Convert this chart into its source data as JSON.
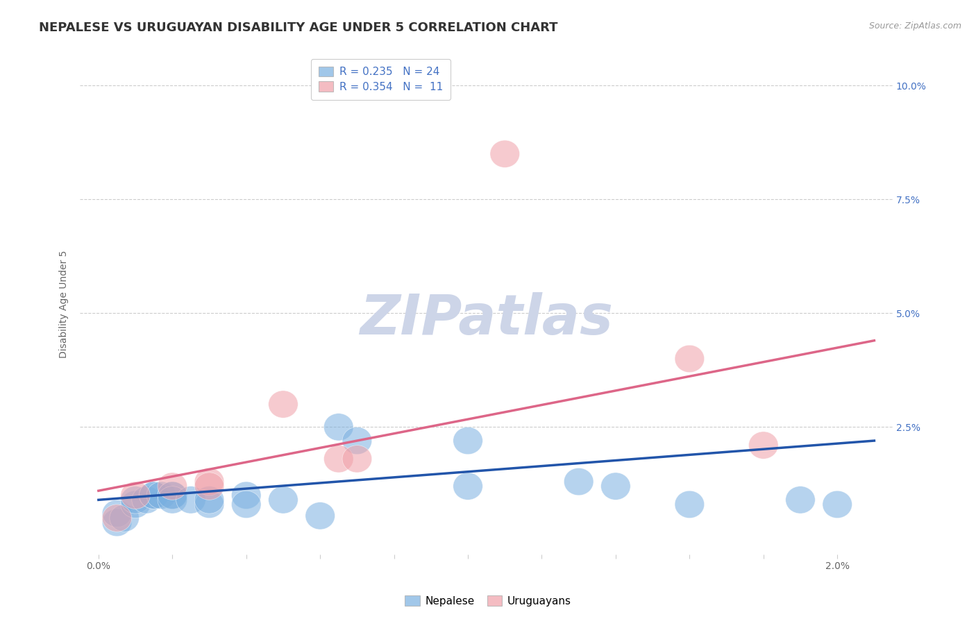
{
  "title": "NEPALESE VS URUGUAYAN DISABILITY AGE UNDER 5 CORRELATION CHART",
  "source_text": "Source: ZipAtlas.com",
  "ylabel": "Disability Age Under 5",
  "x_ticks_pct": [
    0.0,
    0.002,
    0.004,
    0.006,
    0.008,
    0.01,
    0.012,
    0.014,
    0.016,
    0.018,
    0.02
  ],
  "y_ticks_pct": [
    0.0,
    0.025,
    0.05,
    0.075,
    0.1
  ],
  "y_tick_labels": [
    "",
    "2.5%",
    "5.0%",
    "7.5%",
    "10.0%"
  ],
  "xlim": [
    -0.0005,
    0.0215
  ],
  "ylim": [
    -0.003,
    0.107
  ],
  "nepalese_color": "#7ab0e0",
  "uruguayan_color": "#f0a0a8",
  "nepalese_line_color": "#2255aa",
  "uruguayan_line_color": "#dd6688",
  "nepalese_scatter_x": [
    0.0005,
    0.0005,
    0.0007,
    0.001,
    0.001,
    0.0013,
    0.0015,
    0.0015,
    0.0017,
    0.002,
    0.002,
    0.002,
    0.0025,
    0.003,
    0.003,
    0.004,
    0.004,
    0.005,
    0.006,
    0.0065,
    0.007,
    0.01,
    0.01,
    0.013,
    0.014,
    0.016,
    0.019,
    0.02
  ],
  "nepalese_scatter_y": [
    0.004,
    0.006,
    0.005,
    0.008,
    0.009,
    0.009,
    0.01,
    0.01,
    0.01,
    0.01,
    0.01,
    0.009,
    0.009,
    0.008,
    0.009,
    0.01,
    0.008,
    0.009,
    0.0055,
    0.025,
    0.022,
    0.022,
    0.012,
    0.013,
    0.012,
    0.008,
    0.009,
    0.008
  ],
  "uruguayan_scatter_x": [
    0.0005,
    0.001,
    0.002,
    0.003,
    0.003,
    0.005,
    0.0065,
    0.007,
    0.011,
    0.016,
    0.018
  ],
  "uruguayan_scatter_y": [
    0.005,
    0.01,
    0.012,
    0.013,
    0.012,
    0.03,
    0.018,
    0.018,
    0.085,
    0.04,
    0.021
  ],
  "nep_line_x0": 0.0,
  "nep_line_y0": 0.009,
  "nep_line_x1": 0.021,
  "nep_line_y1": 0.022,
  "uru_line_x0": 0.0,
  "uru_line_y0": 0.011,
  "uru_line_x1": 0.021,
  "uru_line_y1": 0.044,
  "background_color": "#ffffff",
  "grid_color": "#cccccc",
  "title_fontsize": 13,
  "axis_label_fontsize": 10,
  "tick_fontsize": 10,
  "legend_fontsize": 11,
  "watermark_text": "ZIPatlas",
  "watermark_color": "#cdd5e8",
  "watermark_fontsize": 58
}
